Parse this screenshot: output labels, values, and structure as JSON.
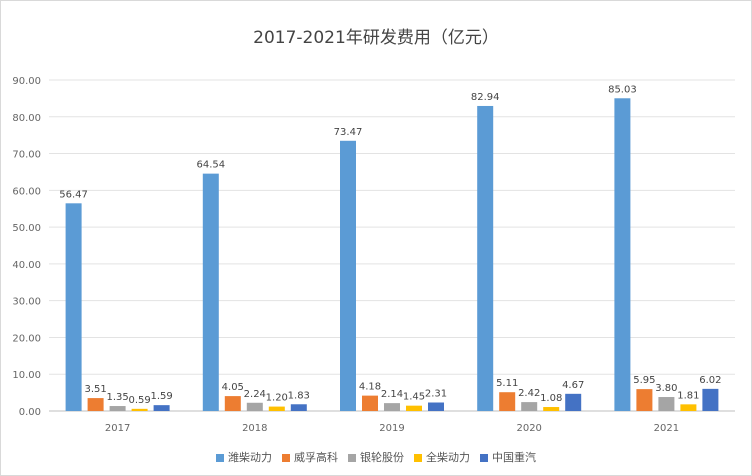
{
  "chart_data": {
    "type": "bar",
    "title": "2017-2021年研发费用（亿元）",
    "categories": [
      "2017",
      "2018",
      "2019",
      "2020",
      "2021"
    ],
    "ylim": [
      0,
      90
    ],
    "yticks": [
      "0.00",
      "10.00",
      "20.00",
      "30.00",
      "40.00",
      "50.00",
      "60.00",
      "70.00",
      "80.00",
      "90.00"
    ],
    "grid": true,
    "legend": "bottom",
    "series": [
      {
        "name": "潍柴动力",
        "color": "#5b9bd5",
        "values": [
          56.47,
          64.54,
          73.47,
          82.94,
          85.03
        ]
      },
      {
        "name": "威孚高科",
        "color": "#ed7d31",
        "values": [
          3.51,
          4.05,
          4.18,
          5.11,
          5.95
        ]
      },
      {
        "name": "银轮股份",
        "color": "#a5a5a5",
        "values": [
          1.35,
          2.24,
          2.14,
          2.42,
          3.8
        ]
      },
      {
        "name": "全柴动力",
        "color": "#ffc000",
        "values": [
          0.59,
          1.2,
          1.45,
          1.08,
          1.81
        ]
      },
      {
        "name": "中国重汽",
        "color": "#4472c4",
        "values": [
          1.59,
          1.83,
          2.31,
          4.67,
          6.02
        ]
      }
    ]
  }
}
